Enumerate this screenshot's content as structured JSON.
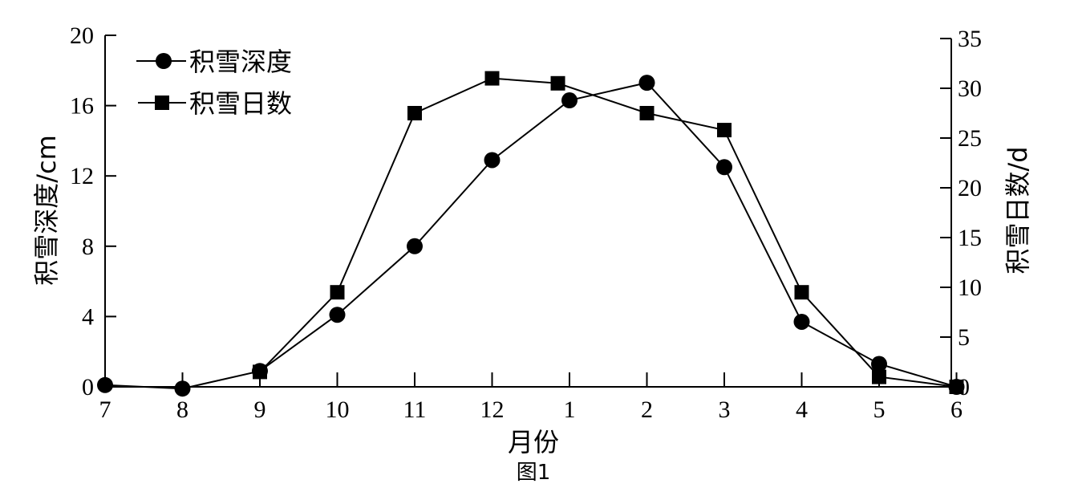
{
  "chart_data": {
    "type": "line",
    "categories": [
      "7",
      "8",
      "9",
      "10",
      "11",
      "12",
      "1",
      "2",
      "3",
      "4",
      "5",
      "6"
    ],
    "xlabel": "月份",
    "caption": "图1",
    "ylabel_left": "积雪深度/cm",
    "ylabel_right": "积雪日数/d",
    "ylim_left": [
      0,
      20
    ],
    "yticks_left": [
      "0",
      "4",
      "8",
      "12",
      "16",
      "20"
    ],
    "ylim_right": [
      0,
      35
    ],
    "yticks_right": [
      "0",
      "5",
      "10",
      "15",
      "20",
      "25",
      "30",
      "35"
    ],
    "grid": false,
    "legend_position": "top-left",
    "series": [
      {
        "name": "积雪深度",
        "marker": "circle",
        "axis": "left",
        "x": [
          0,
          1,
          2,
          3,
          4,
          5,
          6,
          7,
          8,
          9,
          10,
          11
        ],
        "values": [
          0.1,
          -0.1,
          0.9,
          4.1,
          8.0,
          12.9,
          16.3,
          17.3,
          12.5,
          3.7,
          1.3,
          0.0
        ]
      },
      {
        "name": "积雪日数",
        "marker": "square",
        "axis": "right",
        "x": [
          2,
          3,
          4,
          5,
          5.85,
          7,
          8,
          9,
          10,
          11
        ],
        "values": [
          1.5,
          9.5,
          27.5,
          31.0,
          30.5,
          27.5,
          25.8,
          9.5,
          1.0,
          0.0
        ]
      }
    ]
  }
}
